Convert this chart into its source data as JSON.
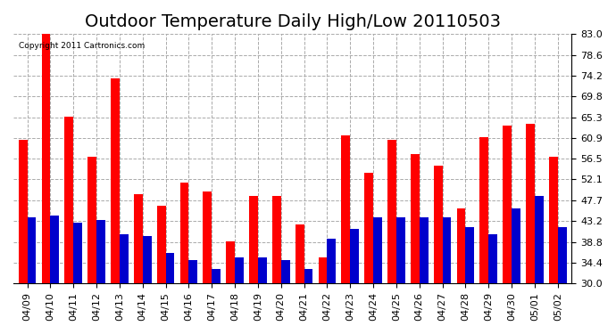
{
  "title": "Outdoor Temperature Daily High/Low 20110503",
  "copyright_text": "Copyright 2011 Cartronics.com",
  "categories": [
    "04/09",
    "04/10",
    "04/11",
    "04/12",
    "04/13",
    "04/14",
    "04/15",
    "04/16",
    "04/17",
    "04/18",
    "04/19",
    "04/20",
    "04/21",
    "04/22",
    "04/23",
    "04/24",
    "04/25",
    "04/26",
    "04/27",
    "04/28",
    "04/29",
    "04/30",
    "05/01",
    "05/02"
  ],
  "highs": [
    60.5,
    83.5,
    65.5,
    57.0,
    73.5,
    49.0,
    46.5,
    51.5,
    49.5,
    39.0,
    48.5,
    48.5,
    42.5,
    35.5,
    61.5,
    53.5,
    60.5,
    57.5,
    55.0,
    46.0,
    61.0,
    63.5,
    64.0,
    57.0
  ],
  "lows": [
    44.0,
    44.5,
    43.0,
    43.5,
    40.5,
    40.0,
    36.5,
    35.0,
    33.0,
    35.5,
    35.5,
    35.0,
    33.0,
    39.5,
    41.5,
    44.0,
    44.0,
    44.0,
    44.0,
    42.0,
    40.5,
    46.0,
    48.5,
    42.0
  ],
  "high_color": "#ff0000",
  "low_color": "#0000cc",
  "bg_color": "#ffffff",
  "plot_bg_color": "#ffffff",
  "grid_color": "#aaaaaa",
  "ylim": [
    30.0,
    83.0
  ],
  "yticks": [
    30.0,
    34.4,
    38.8,
    43.2,
    47.7,
    52.1,
    56.5,
    60.9,
    65.3,
    69.8,
    74.2,
    78.6,
    83.0
  ],
  "title_fontsize": 14,
  "tick_fontsize": 8,
  "bar_width": 0.38
}
